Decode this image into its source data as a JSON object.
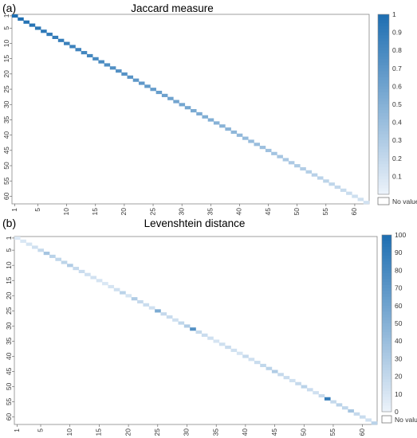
{
  "panels": [
    {
      "label": "(a)",
      "title": "Jaccard measure"
    },
    {
      "label": "(b)",
      "title": "Levenshtein distance"
    }
  ],
  "colors": {
    "high": "#1f6fb2",
    "low": "#eef4fb",
    "frame": "#888888"
  },
  "chart_data": [
    {
      "type": "heatmap",
      "title": "Jaccard measure",
      "n": 62,
      "x_ticks": [
        1,
        5,
        10,
        15,
        20,
        25,
        30,
        35,
        40,
        45,
        50,
        55,
        60
      ],
      "y_ticks": [
        1,
        5,
        10,
        15,
        20,
        25,
        30,
        35,
        40,
        45,
        50,
        55,
        60
      ],
      "diagonal_values": [
        1.0,
        0.99,
        0.97,
        0.96,
        0.94,
        0.93,
        0.91,
        0.9,
        0.89,
        0.87,
        0.86,
        0.84,
        0.83,
        0.82,
        0.8,
        0.79,
        0.77,
        0.76,
        0.75,
        0.73,
        0.72,
        0.7,
        0.69,
        0.67,
        0.66,
        0.65,
        0.63,
        0.62,
        0.6,
        0.59,
        0.58,
        0.56,
        0.55,
        0.53,
        0.52,
        0.5,
        0.49,
        0.48,
        0.46,
        0.45,
        0.43,
        0.42,
        0.41,
        0.39,
        0.38,
        0.36,
        0.35,
        0.33,
        0.32,
        0.31,
        0.29,
        0.28,
        0.26,
        0.25,
        0.24,
        0.22,
        0.21,
        0.19,
        0.18,
        0.16,
        0.15,
        0.14
      ],
      "off_diagonal": "No value",
      "colorbar": {
        "ticks": [
          "0.1",
          "0.2",
          "0.3",
          "0.4",
          "0.5",
          "0.6",
          "0.7",
          "0.8",
          "0.9",
          "1"
        ],
        "range": [
          0,
          1
        ],
        "missing_label": "No value"
      }
    },
    {
      "type": "heatmap",
      "title": "Levenshtein distance",
      "n": 62,
      "x_ticks": [
        1,
        5,
        10,
        15,
        20,
        25,
        30,
        35,
        40,
        45,
        50,
        55,
        60
      ],
      "y_ticks": [
        1,
        5,
        10,
        15,
        20,
        25,
        30,
        35,
        40,
        45,
        50,
        55,
        60
      ],
      "diagonal_values": [
        8,
        10,
        12,
        15,
        20,
        35,
        25,
        22,
        24,
        30,
        20,
        18,
        15,
        14,
        12,
        10,
        12,
        15,
        25,
        12,
        30,
        20,
        18,
        15,
        55,
        20,
        18,
        15,
        22,
        30,
        75,
        20,
        18,
        15,
        12,
        15,
        18,
        15,
        12,
        20,
        15,
        18,
        22,
        25,
        30,
        20,
        18,
        15,
        20,
        25,
        18,
        15,
        20,
        90,
        20,
        25,
        22,
        35,
        20,
        18,
        15,
        25
      ],
      "off_diagonal": "No value",
      "colorbar": {
        "ticks": [
          "0",
          "10",
          "20",
          "30",
          "40",
          "50",
          "60",
          "70",
          "80",
          "90",
          "100"
        ],
        "range": [
          0,
          100
        ],
        "missing_label": "No value"
      }
    }
  ]
}
